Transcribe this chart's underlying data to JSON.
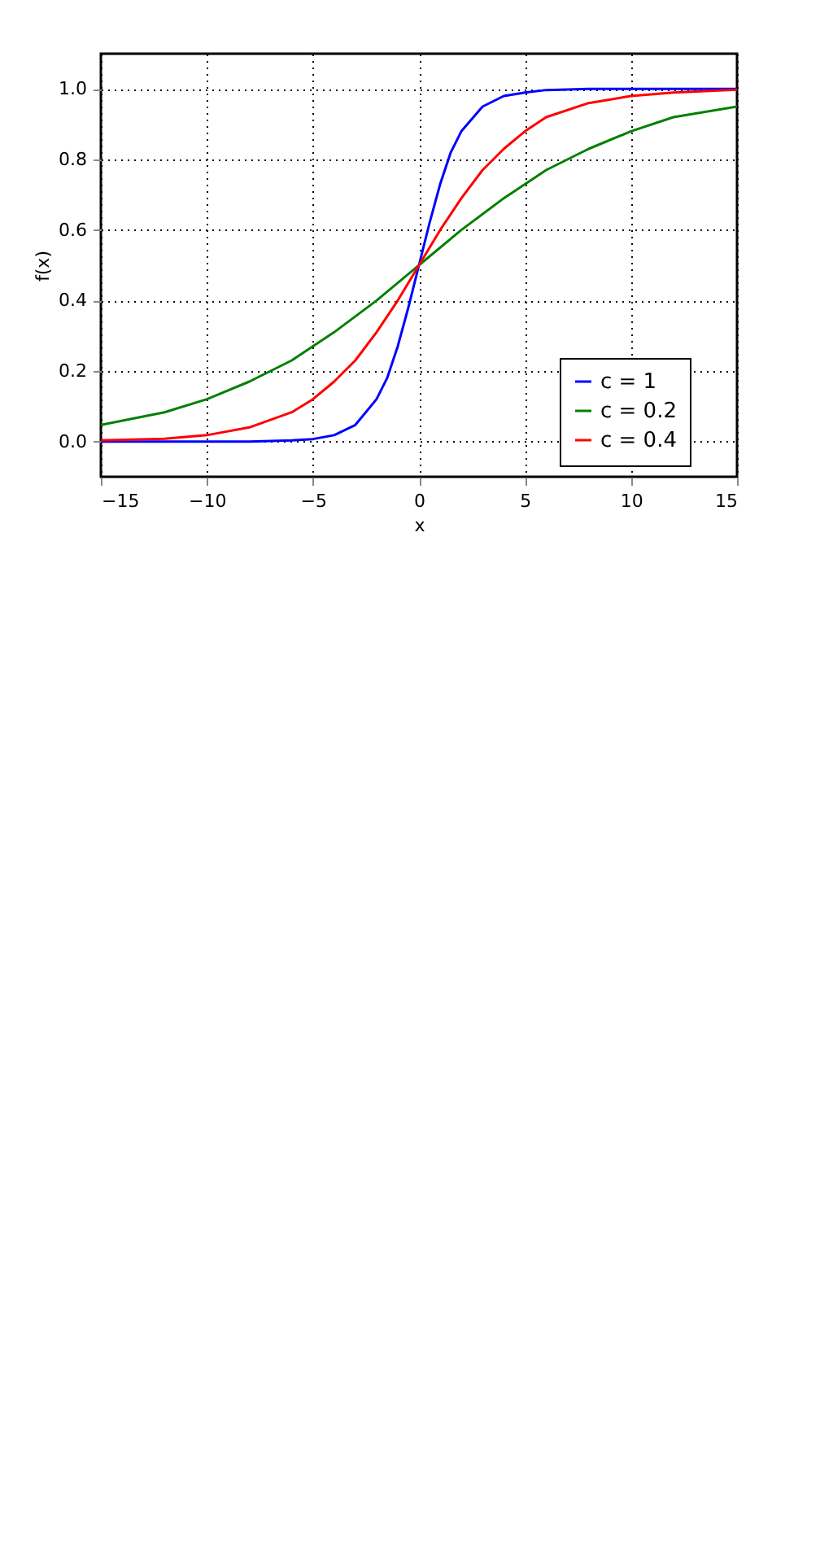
{
  "chart_data": {
    "type": "line",
    "xlabel": "x",
    "ylabel": "f(x)",
    "xlim": [
      -15,
      15
    ],
    "ylim": [
      -0.1,
      1.1
    ],
    "xticks": [
      {
        "value": -15,
        "label": "−15"
      },
      {
        "value": -10,
        "label": "−10"
      },
      {
        "value": -5,
        "label": "−5"
      },
      0,
      5,
      10,
      15
    ],
    "yticks": [
      {
        "value": 0,
        "label": "0.0"
      },
      0.2,
      0.4,
      0.6,
      0.8,
      {
        "value": 1,
        "label": "1.0"
      }
    ],
    "grid": true,
    "legend": "bottom right",
    "marker": "none",
    "line_style": "solid",
    "series": [
      {
        "name": "c = 1",
        "color": "#0000ff",
        "x": [
          -15,
          -10,
          -8,
          -6,
          -5,
          -4,
          -3,
          -2,
          -1.5,
          -1,
          -0.5,
          0,
          0.5,
          1,
          1.5,
          2,
          3,
          4,
          5,
          6,
          8,
          10,
          15
        ],
        "values": [
          0.0,
          0.0,
          0.0,
          0.003,
          0.007,
          0.018,
          0.047,
          0.12,
          0.18,
          0.27,
          0.38,
          0.5,
          0.62,
          0.73,
          0.82,
          0.88,
          0.95,
          0.98,
          0.99,
          0.997,
          1.0,
          1.0,
          1.0
        ]
      },
      {
        "name": "c = 0.2",
        "color": "#008000",
        "x": [
          -15,
          -12,
          -10,
          -8,
          -6,
          -4,
          -2,
          0,
          2,
          4,
          6,
          8,
          10,
          12,
          15
        ],
        "values": [
          0.047,
          0.083,
          0.12,
          0.17,
          0.23,
          0.31,
          0.4,
          0.5,
          0.6,
          0.69,
          0.77,
          0.83,
          0.88,
          0.92,
          0.95
        ]
      },
      {
        "name": "c = 0.4",
        "color": "#ff0000",
        "x": [
          -15,
          -12,
          -10,
          -8,
          -6,
          -5,
          -4,
          -3,
          -2,
          -1,
          0,
          1,
          2,
          3,
          4,
          5,
          6,
          8,
          10,
          12,
          15
        ],
        "values": [
          0.003,
          0.008,
          0.018,
          0.04,
          0.083,
          0.12,
          0.17,
          0.23,
          0.31,
          0.4,
          0.5,
          0.6,
          0.69,
          0.77,
          0.83,
          0.88,
          0.92,
          0.96,
          0.98,
          0.99,
          0.998
        ]
      }
    ]
  }
}
